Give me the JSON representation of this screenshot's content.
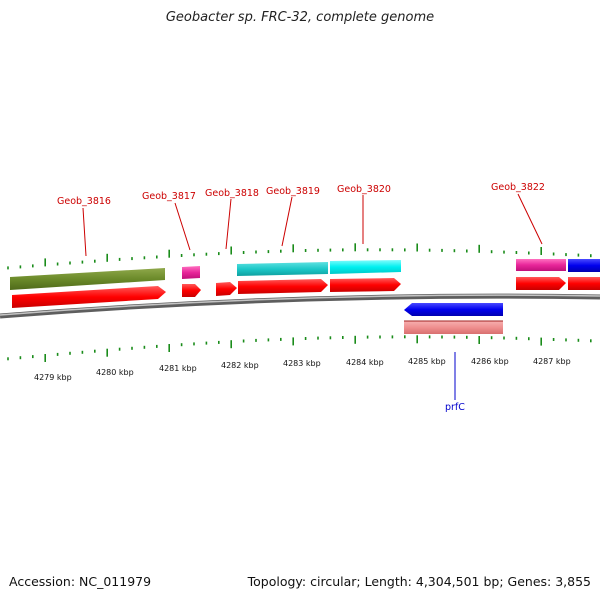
{
  "title": "Geobacter sp. FRC-32, complete genome",
  "footer": {
    "accession": "Accession: NC_011979",
    "summary": "Topology: circular; Length: 4,304,501 bp; Genes: 3,855"
  },
  "colors": {
    "tick": "#1a8c1a",
    "label_red": "#cc0000",
    "label_blue": "#0000cc",
    "backbone": "#888888"
  },
  "kbp_labels": [
    "4279 kbp",
    "4280 kbp",
    "4281 kbp",
    "4282 kbp",
    "4283 kbp",
    "4284 kbp",
    "4285 kbp",
    "4286 kbp",
    "4287 kbp"
  ],
  "gene_labels": {
    "geob_3816": "Geob_3816",
    "geob_3817": "Geob_3817",
    "geob_3818": "Geob_3818",
    "geob_3819": "Geob_3819",
    "geob_3820": "Geob_3820",
    "geob_3822": "Geob_3822",
    "prfc": "prfC"
  }
}
